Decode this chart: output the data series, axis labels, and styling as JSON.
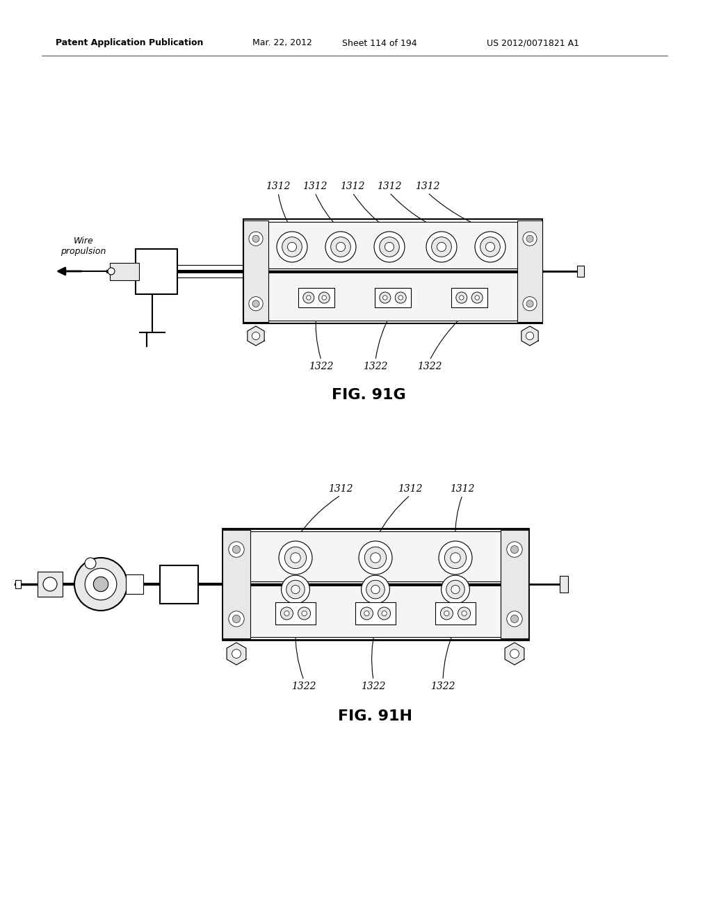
{
  "bg_color": "#ffffff",
  "header_text": "Patent Application Publication",
  "header_date": "Mar. 22, 2012",
  "header_sheet": "Sheet 114 of 194",
  "header_patent": "US 2012/0071821 A1",
  "fig1_label": "FIG. 91G",
  "fig2_label": "FIG. 91H",
  "label_1312": "1312",
  "label_1322": "1322",
  "wire_propulsion": "Wire\npropulsion",
  "line_color": "#000000",
  "light_gray": "#e8e8e8",
  "mid_gray": "#c0c0c0",
  "dark_gray": "#888888"
}
